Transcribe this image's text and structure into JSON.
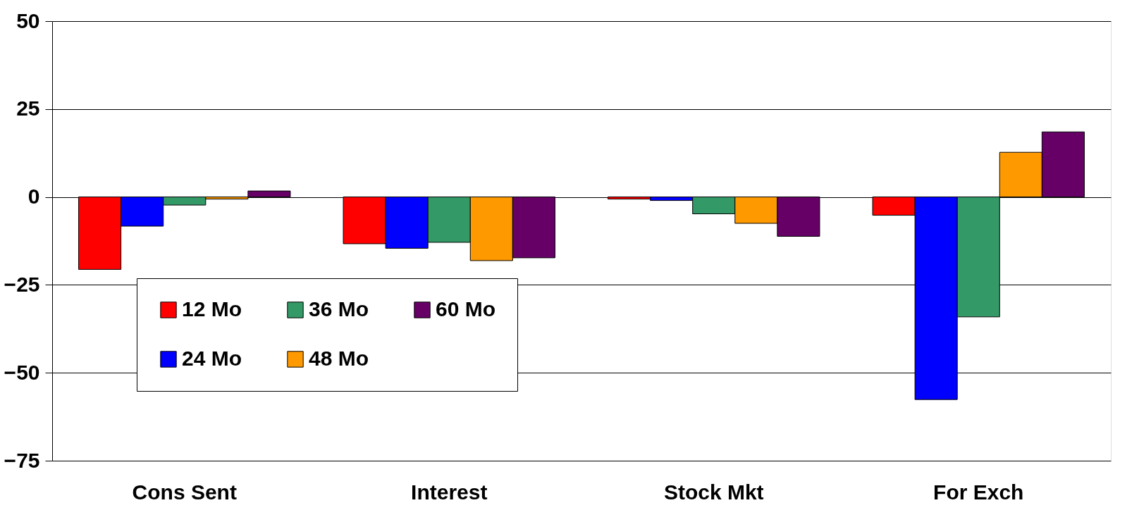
{
  "chart_data": {
    "type": "bar",
    "categories": [
      "Cons Sent",
      "Interest",
      "Stock Mkt",
      "For Exch"
    ],
    "series": [
      {
        "name": "12 Mo",
        "color": "#ff0000",
        "values": [
          -20.6,
          -13.3,
          -0.6,
          -5.2
        ]
      },
      {
        "name": "24 Mo",
        "color": "#0000ff",
        "values": [
          -8.3,
          -14.6,
          -1.0,
          -57.6
        ]
      },
      {
        "name": "36 Mo",
        "color": "#339966",
        "values": [
          -2.3,
          -12.9,
          -4.8,
          -34.1
        ]
      },
      {
        "name": "48 Mo",
        "color": "#ff9900",
        "values": [
          -0.6,
          -18.1,
          -7.5,
          12.7
        ]
      },
      {
        "name": "60 Mo",
        "color": "#660066",
        "values": [
          1.7,
          -17.3,
          -11.2,
          18.5
        ]
      }
    ],
    "ylim": [
      -75,
      50
    ],
    "yticks": [
      -75,
      -50,
      -25,
      0,
      25,
      50
    ],
    "grid": "y",
    "legend": "bottom left"
  }
}
